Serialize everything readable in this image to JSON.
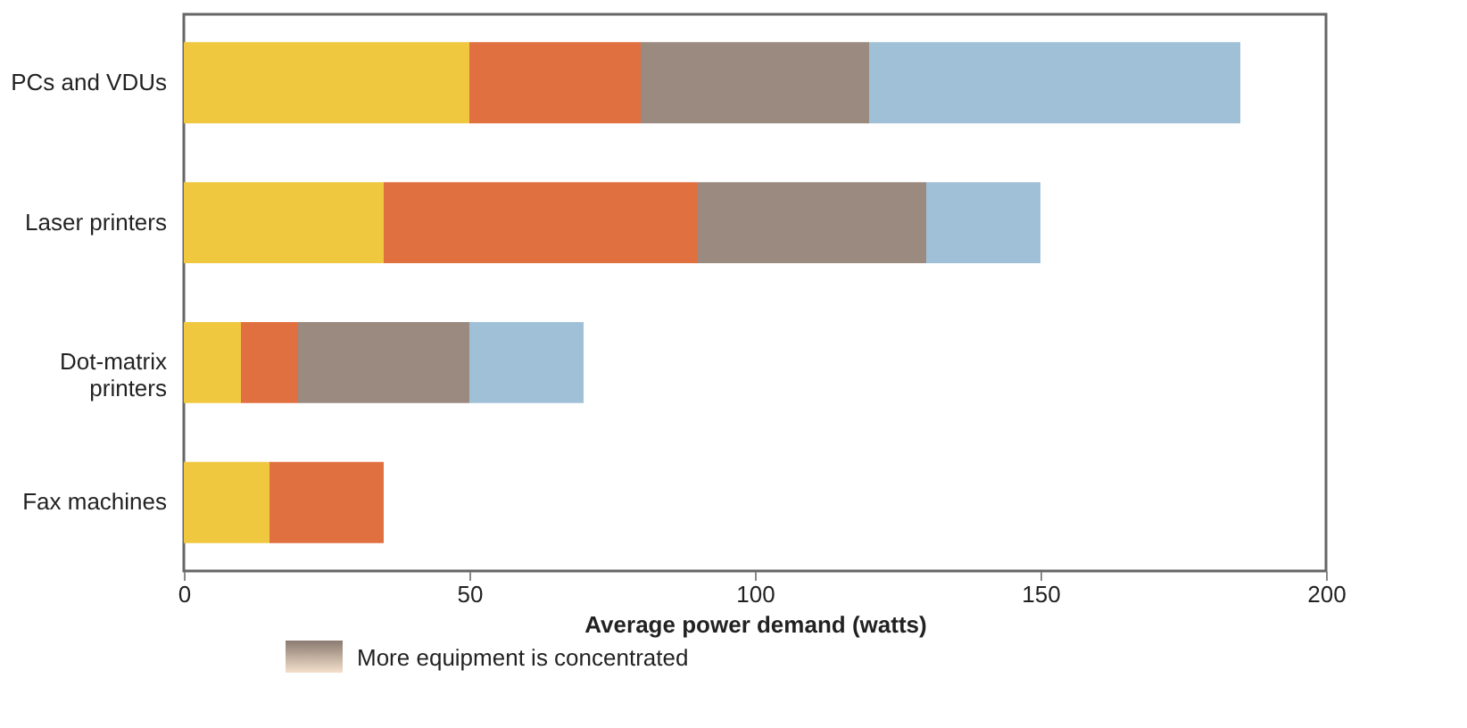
{
  "chart_data": {
    "type": "bar",
    "orientation": "horizontal",
    "stacked": true,
    "categories": [
      "PCs and VDUs",
      "Laser printers",
      "Dot-matrix\nprinters",
      "Fax machines"
    ],
    "series": [
      {
        "color": "#f0c840",
        "values": [
          50,
          35,
          10,
          15
        ]
      },
      {
        "color": "#e07040",
        "values": [
          30,
          55,
          10,
          20
        ]
      },
      {
        "color": "#9a8a80",
        "values": [
          40,
          40,
          30,
          null
        ]
      },
      {
        "color": "#a0c0d8",
        "values": [
          65,
          20,
          20,
          null
        ]
      }
    ],
    "xlabel": "Average power demand (watts)",
    "xlim": [
      0,
      200
    ],
    "xticks": [
      0,
      50,
      100,
      150,
      200
    ],
    "grid": false,
    "legend": false,
    "annotations": [
      "More equipment is concentrated"
    ]
  }
}
